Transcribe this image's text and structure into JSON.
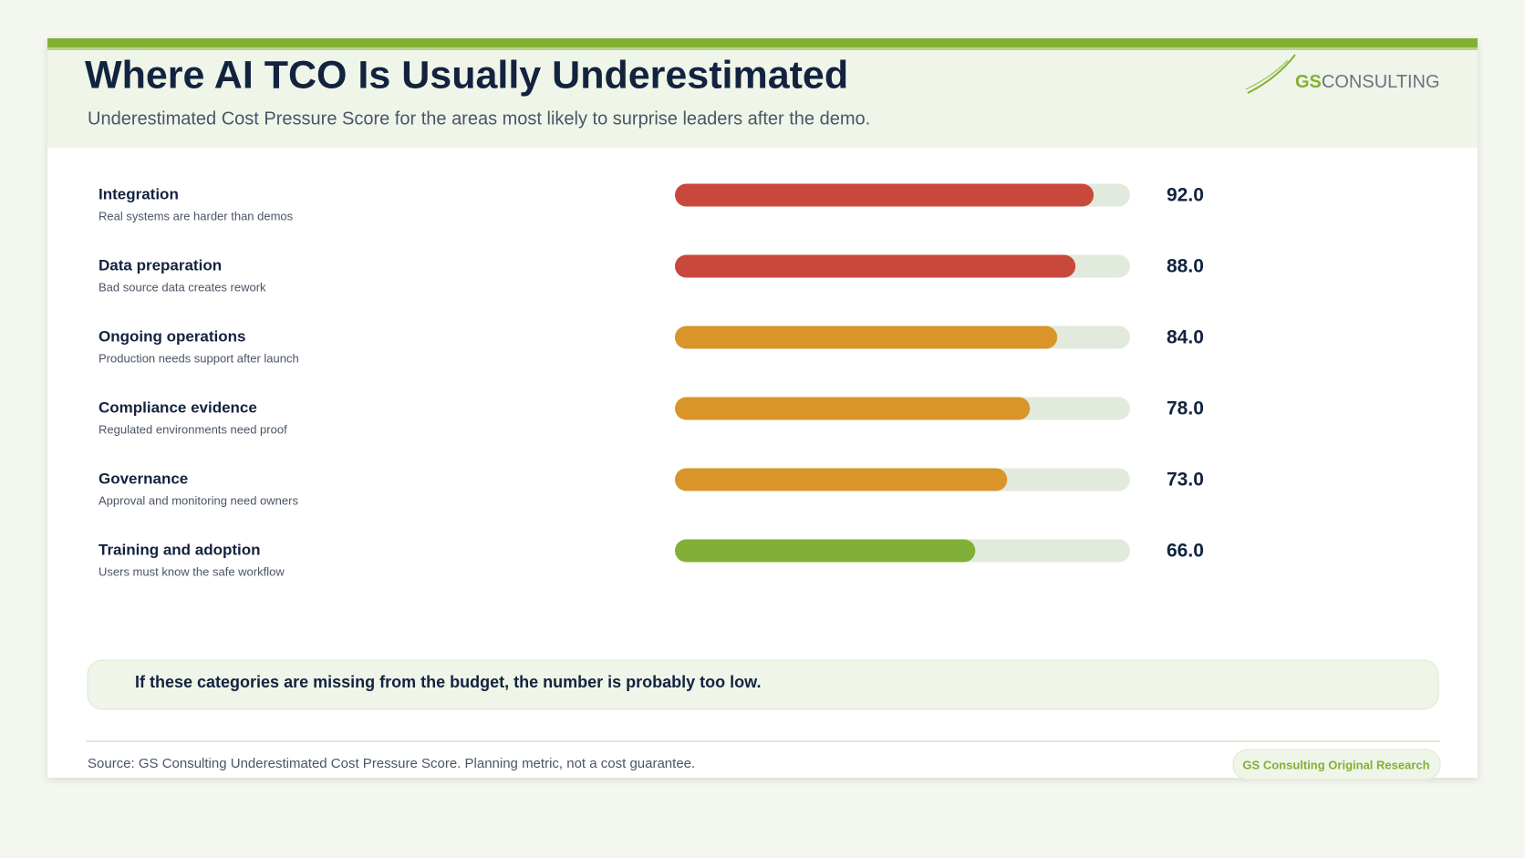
{
  "chart_data": {
    "type": "bar",
    "orientation": "horizontal",
    "title": "Where AI TCO Is Usually Underestimated",
    "subtitle": "Underestimated Cost Pressure Score for the areas most likely to surprise leaders after the demo.",
    "categories": [
      "Integration",
      "Data preparation",
      "Ongoing operations",
      "Compliance evidence",
      "Governance",
      "Training and adoption"
    ],
    "descriptions": [
      "Real systems are harder than demos",
      "Bad source data creates rework",
      "Production needs support after launch",
      "Regulated environments need proof",
      "Approval and monitoring need owners",
      "Users must know the safe workflow"
    ],
    "values": [
      92,
      88,
      84,
      78,
      73,
      66
    ],
    "value_labels": [
      "92.0",
      "88.0",
      "84.0",
      "78.0",
      "73.0",
      "66.0"
    ],
    "colors": [
      "#c8483b",
      "#c8483b",
      "#d9942a",
      "#d9942a",
      "#d9942a",
      "#82b036"
    ],
    "track_color": "#e1eadc",
    "xlim": [
      0,
      100
    ]
  },
  "logo": {
    "prefix": "GS",
    "name": "CONSULTING"
  },
  "callout": "If these categories are missing from the budget, the number is probably too low.",
  "source": "Source: GS Consulting Underestimated Cost Pressure Score. Planning metric, not a cost guarantee.",
  "badge": "GS Consulting Original Research"
}
